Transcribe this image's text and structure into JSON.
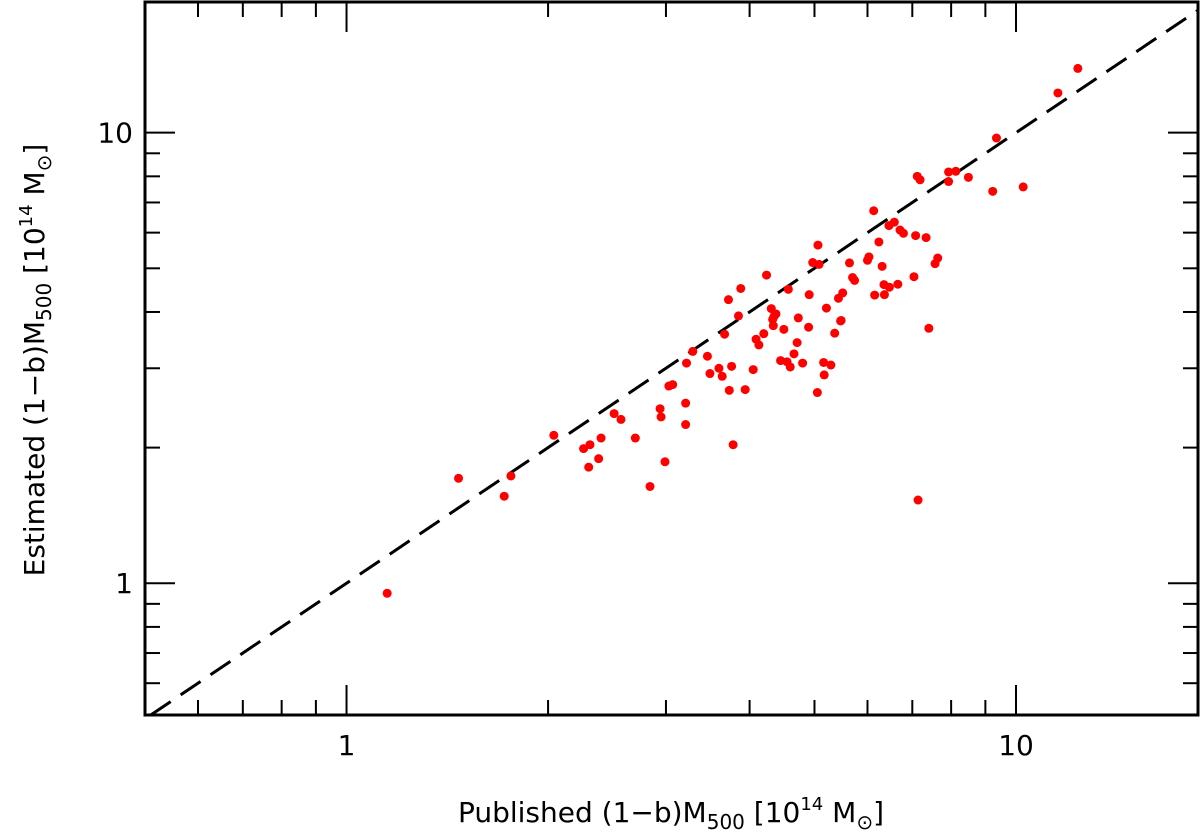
{
  "chart_data": {
    "type": "scatter",
    "title": "",
    "x_scale": "log",
    "y_scale": "log",
    "xlim": [
      0.5,
      18.7
    ],
    "ylim": [
      0.51,
      19.5
    ],
    "xlabel": {
      "prefix": "Published  (1−b)M",
      "subscript": "500",
      "unit_open": "  [10",
      "superscript": "14",
      "unit_close": "  M",
      "solar_symbol": "⊙",
      "bracket_close": "]"
    },
    "ylabel": {
      "prefix": "Estimated  (1−b)M",
      "subscript": "500",
      "unit_open": "  [10",
      "superscript": "14",
      "unit_close": "  M",
      "solar_symbol": "⊙",
      "bracket_close": "]"
    },
    "x_tick_labels": [
      {
        "value": 1,
        "label": "1"
      },
      {
        "value": 10,
        "label": "10"
      }
    ],
    "y_tick_labels": [
      {
        "value": 1,
        "label": "1"
      },
      {
        "value": 10,
        "label": "10"
      }
    ],
    "reference_line": {
      "kind": "y=x",
      "style": "dashed",
      "color": "#000000"
    },
    "marker_color": "#ff0000",
    "series": [
      {
        "points": [
          [
            1.15,
            0.95
          ],
          [
            1.47,
            1.71
          ],
          [
            1.72,
            1.56
          ],
          [
            1.76,
            1.73
          ],
          [
            2.04,
            2.13
          ],
          [
            2.26,
            1.99
          ],
          [
            2.3,
            1.81
          ],
          [
            2.31,
            2.03
          ],
          [
            2.38,
            1.89
          ],
          [
            2.4,
            2.1
          ],
          [
            2.51,
            2.38
          ],
          [
            2.57,
            2.31
          ],
          [
            2.7,
            2.1
          ],
          [
            2.84,
            1.64
          ],
          [
            2.94,
            2.44
          ],
          [
            2.95,
            2.34
          ],
          [
            2.99,
            1.86
          ],
          [
            3.03,
            2.74
          ],
          [
            3.07,
            2.76
          ],
          [
            3.21,
            2.25
          ],
          [
            3.21,
            2.51
          ],
          [
            3.22,
            3.08
          ],
          [
            3.29,
            3.27
          ],
          [
            3.46,
            3.19
          ],
          [
            3.49,
            2.92
          ],
          [
            3.6,
            3.0
          ],
          [
            3.64,
            2.88
          ],
          [
            3.67,
            3.57
          ],
          [
            3.72,
            4.26
          ],
          [
            3.73,
            2.68
          ],
          [
            3.76,
            3.03
          ],
          [
            3.78,
            2.03
          ],
          [
            3.85,
            3.92
          ],
          [
            3.88,
            4.51
          ],
          [
            3.94,
            2.69
          ],
          [
            4.05,
            2.98
          ],
          [
            4.09,
            3.48
          ],
          [
            4.13,
            3.38
          ],
          [
            4.2,
            3.58
          ],
          [
            4.24,
            4.83
          ],
          [
            4.31,
            4.07
          ],
          [
            4.33,
            3.85
          ],
          [
            4.34,
            3.73
          ],
          [
            4.35,
            3.91
          ],
          [
            4.38,
            3.96
          ],
          [
            4.45,
            3.12
          ],
          [
            4.5,
            3.66
          ],
          [
            4.55,
            3.1
          ],
          [
            4.57,
            4.49
          ],
          [
            4.6,
            3.02
          ],
          [
            4.66,
            3.23
          ],
          [
            4.71,
            3.42
          ],
          [
            4.73,
            3.88
          ],
          [
            4.8,
            3.08
          ],
          [
            4.9,
            3.7
          ],
          [
            4.91,
            4.37
          ],
          [
            4.97,
            5.15
          ],
          [
            5.05,
            2.65
          ],
          [
            5.06,
            5.63
          ],
          [
            5.08,
            5.1
          ],
          [
            5.16,
            3.09
          ],
          [
            5.17,
            2.9
          ],
          [
            5.21,
            4.08
          ],
          [
            5.29,
            3.05
          ],
          [
            5.36,
            3.59
          ],
          [
            5.43,
            4.29
          ],
          [
            5.47,
            3.82
          ],
          [
            5.48,
            3.83
          ],
          [
            5.51,
            4.41
          ],
          [
            5.64,
            5.14
          ],
          [
            5.7,
            4.77
          ],
          [
            5.74,
            4.7
          ],
          [
            6.0,
            5.21
          ],
          [
            6.03,
            5.3
          ],
          [
            6.13,
            6.71
          ],
          [
            6.15,
            4.36
          ],
          [
            6.24,
            5.72
          ],
          [
            6.31,
            5.05
          ],
          [
            6.35,
            4.6
          ],
          [
            6.36,
            4.37
          ],
          [
            6.46,
            6.22
          ],
          [
            6.47,
            4.54
          ],
          [
            6.58,
            6.33
          ],
          [
            6.66,
            4.61
          ],
          [
            6.71,
            6.08
          ],
          [
            6.79,
            5.98
          ],
          [
            7.04,
            4.79
          ],
          [
            7.08,
            5.91
          ],
          [
            7.12,
            8.0
          ],
          [
            7.14,
            1.53
          ],
          [
            7.19,
            7.86
          ],
          [
            7.34,
            5.85
          ],
          [
            7.41,
            3.68
          ],
          [
            7.57,
            5.12
          ],
          [
            7.64,
            5.27
          ],
          [
            7.93,
            8.18
          ],
          [
            7.93,
            7.79
          ],
          [
            8.13,
            8.21
          ],
          [
            8.49,
            7.96
          ],
          [
            9.23,
            7.41
          ],
          [
            9.35,
            9.73
          ],
          [
            10.25,
            7.58
          ],
          [
            11.55,
            12.25
          ],
          [
            12.37,
            13.89
          ]
        ]
      }
    ]
  }
}
